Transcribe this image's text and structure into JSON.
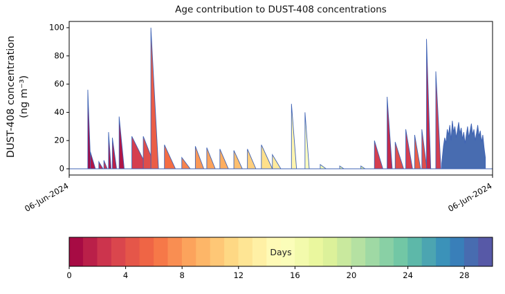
{
  "title": "Age contribution to DUST-408 concentrations",
  "ylabel_line1": "DUST-408 concentration",
  "ylabel_line2": "(ng m⁻³)",
  "chart_data": {
    "type": "area",
    "title": "Age contribution to DUST-408 concentrations",
    "ylabel": "DUST-408 concentration (ng m⁻³)",
    "xlabel": "",
    "ylim": [
      0,
      100
    ],
    "yticks": [
      0,
      20,
      40,
      60,
      80,
      100
    ],
    "xtick_labels": [
      "06-Jun-2024",
      "06-Jun-2024"
    ],
    "line_color": "#3f63b5",
    "spikes": [
      {
        "t": 0.044,
        "peak": 56,
        "tail": 0.007,
        "age": 0.3
      },
      {
        "t": 0.05,
        "peak": 12,
        "tail": 0.012,
        "age": 1
      },
      {
        "t": 0.07,
        "peak": 5,
        "tail": 0.01,
        "age": 2
      },
      {
        "t": 0.082,
        "peak": 6,
        "tail": 0.008,
        "age": 2.5
      },
      {
        "t": 0.093,
        "peak": 26,
        "tail": 0.006,
        "age": 1
      },
      {
        "t": 0.102,
        "peak": 22,
        "tail": 0.01,
        "age": 1.5
      },
      {
        "t": 0.118,
        "peak": 37,
        "tail": 0.012,
        "age": 1
      },
      {
        "t": 0.148,
        "peak": 23,
        "tail": 0.038,
        "age": 3
      },
      {
        "t": 0.175,
        "peak": 23,
        "tail": 0.03,
        "age": 4
      },
      {
        "t": 0.193,
        "peak": 100,
        "tail": 0.018,
        "age": 5
      },
      {
        "t": 0.225,
        "peak": 17,
        "tail": 0.026,
        "age": 6
      },
      {
        "t": 0.266,
        "peak": 8,
        "tail": 0.02,
        "age": 7
      },
      {
        "t": 0.298,
        "peak": 16,
        "tail": 0.02,
        "age": 8
      },
      {
        "t": 0.325,
        "peak": 15,
        "tail": 0.02,
        "age": 8.5
      },
      {
        "t": 0.356,
        "peak": 14,
        "tail": 0.02,
        "age": 9
      },
      {
        "t": 0.389,
        "peak": 13,
        "tail": 0.02,
        "age": 10
      },
      {
        "t": 0.421,
        "peak": 14,
        "tail": 0.02,
        "age": 11
      },
      {
        "t": 0.454,
        "peak": 17,
        "tail": 0.026,
        "age": 12
      },
      {
        "t": 0.48,
        "peak": 10,
        "tail": 0.02,
        "age": 13
      },
      {
        "t": 0.525,
        "peak": 46,
        "tail": 0.012,
        "age": 14
      },
      {
        "t": 0.557,
        "peak": 40,
        "tail": 0.01,
        "age": 15
      },
      {
        "t": 0.593,
        "peak": 3,
        "tail": 0.014,
        "age": 16
      },
      {
        "t": 0.639,
        "peak": 2,
        "tail": 0.01,
        "age": 17
      },
      {
        "t": 0.689,
        "peak": 2,
        "tail": 0.01,
        "age": 18
      },
      {
        "t": 0.721,
        "peak": 20,
        "tail": 0.02,
        "age": 3
      },
      {
        "t": 0.751,
        "peak": 51,
        "tail": 0.012,
        "age": 2
      },
      {
        "t": 0.77,
        "peak": 19,
        "tail": 0.02,
        "age": 4
      },
      {
        "t": 0.795,
        "peak": 28,
        "tail": 0.016,
        "age": 3
      },
      {
        "t": 0.816,
        "peak": 24,
        "tail": 0.014,
        "age": 5
      },
      {
        "t": 0.833,
        "peak": 28,
        "tail": 0.012,
        "age": 4
      },
      {
        "t": 0.844,
        "peak": 92,
        "tail": 0.01,
        "age": 2
      },
      {
        "t": 0.866,
        "peak": 69,
        "tail": 0.012,
        "age": 3
      }
    ],
    "cluster": {
      "age": 28.5,
      "points": [
        [
          0.88,
          4
        ],
        [
          0.884,
          16
        ],
        [
          0.887,
          22
        ],
        [
          0.89,
          18
        ],
        [
          0.893,
          28
        ],
        [
          0.896,
          24
        ],
        [
          0.899,
          31
        ],
        [
          0.902,
          20
        ],
        [
          0.905,
          34
        ],
        [
          0.908,
          26
        ],
        [
          0.911,
          30
        ],
        [
          0.914,
          22
        ],
        [
          0.917,
          27
        ],
        [
          0.92,
          33
        ],
        [
          0.923,
          25
        ],
        [
          0.926,
          29
        ],
        [
          0.929,
          21
        ],
        [
          0.932,
          26
        ],
        [
          0.935,
          18
        ],
        [
          0.938,
          24
        ],
        [
          0.941,
          30
        ],
        [
          0.944,
          22
        ],
        [
          0.947,
          27
        ],
        [
          0.95,
          32
        ],
        [
          0.953,
          24
        ],
        [
          0.956,
          28
        ],
        [
          0.959,
          20
        ],
        [
          0.962,
          25
        ],
        [
          0.965,
          31
        ],
        [
          0.968,
          23
        ],
        [
          0.971,
          27
        ],
        [
          0.974,
          19
        ],
        [
          0.977,
          24
        ],
        [
          0.98,
          15
        ],
        [
          0.983,
          8
        ]
      ]
    },
    "colorbar": {
      "label": "Days",
      "range": [
        0,
        30
      ],
      "ticks": [
        0,
        4,
        8,
        12,
        16,
        20,
        24,
        28
      ],
      "segments": 30,
      "palette": [
        "#9e0142",
        "#d53e4f",
        "#f46d43",
        "#fdae61",
        "#fee08b",
        "#ffffbf",
        "#e6f598",
        "#abdda4",
        "#66c2a5",
        "#3288bd",
        "#5e4fa2"
      ]
    }
  }
}
